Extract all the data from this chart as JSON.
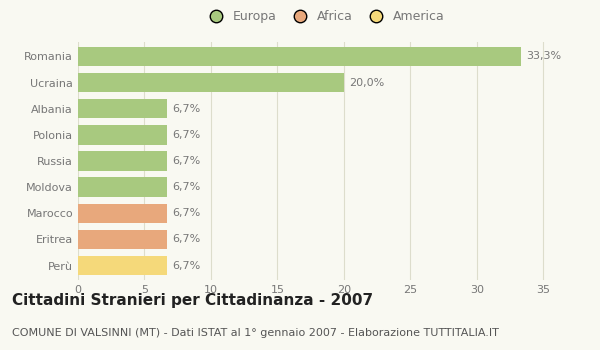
{
  "categories": [
    "Romania",
    "Ucraina",
    "Albania",
    "Polonia",
    "Russia",
    "Moldova",
    "Marocco",
    "Eritrea",
    "Perù"
  ],
  "values": [
    33.3,
    20.0,
    6.7,
    6.7,
    6.7,
    6.7,
    6.7,
    6.7,
    6.7
  ],
  "labels": [
    "33,3%",
    "20,0%",
    "6,7%",
    "6,7%",
    "6,7%",
    "6,7%",
    "6,7%",
    "6,7%",
    "6,7%"
  ],
  "colors": [
    "#a8c97f",
    "#a8c97f",
    "#a8c97f",
    "#a8c97f",
    "#a8c97f",
    "#a8c97f",
    "#e8a87c",
    "#e8a87c",
    "#f5d97a"
  ],
  "legend": [
    {
      "label": "Europa",
      "color": "#a8c97f"
    },
    {
      "label": "Africa",
      "color": "#e8a87c"
    },
    {
      "label": "America",
      "color": "#f5d97a"
    }
  ],
  "xlim": [
    0,
    37
  ],
  "xticks": [
    0,
    5,
    10,
    15,
    20,
    25,
    30,
    35
  ],
  "title": "Cittadini Stranieri per Cittadinanza - 2007",
  "subtitle": "COMUNE DI VALSINNI (MT) - Dati ISTAT al 1° gennaio 2007 - Elaborazione TUTTITALIA.IT",
  "background_color": "#f9f9f2",
  "grid_color": "#ddddcc",
  "bar_height": 0.75,
  "title_fontsize": 11,
  "subtitle_fontsize": 8,
  "label_fontsize": 8,
  "tick_fontsize": 8,
  "label_color": "#777777",
  "tick_color": "#777777"
}
